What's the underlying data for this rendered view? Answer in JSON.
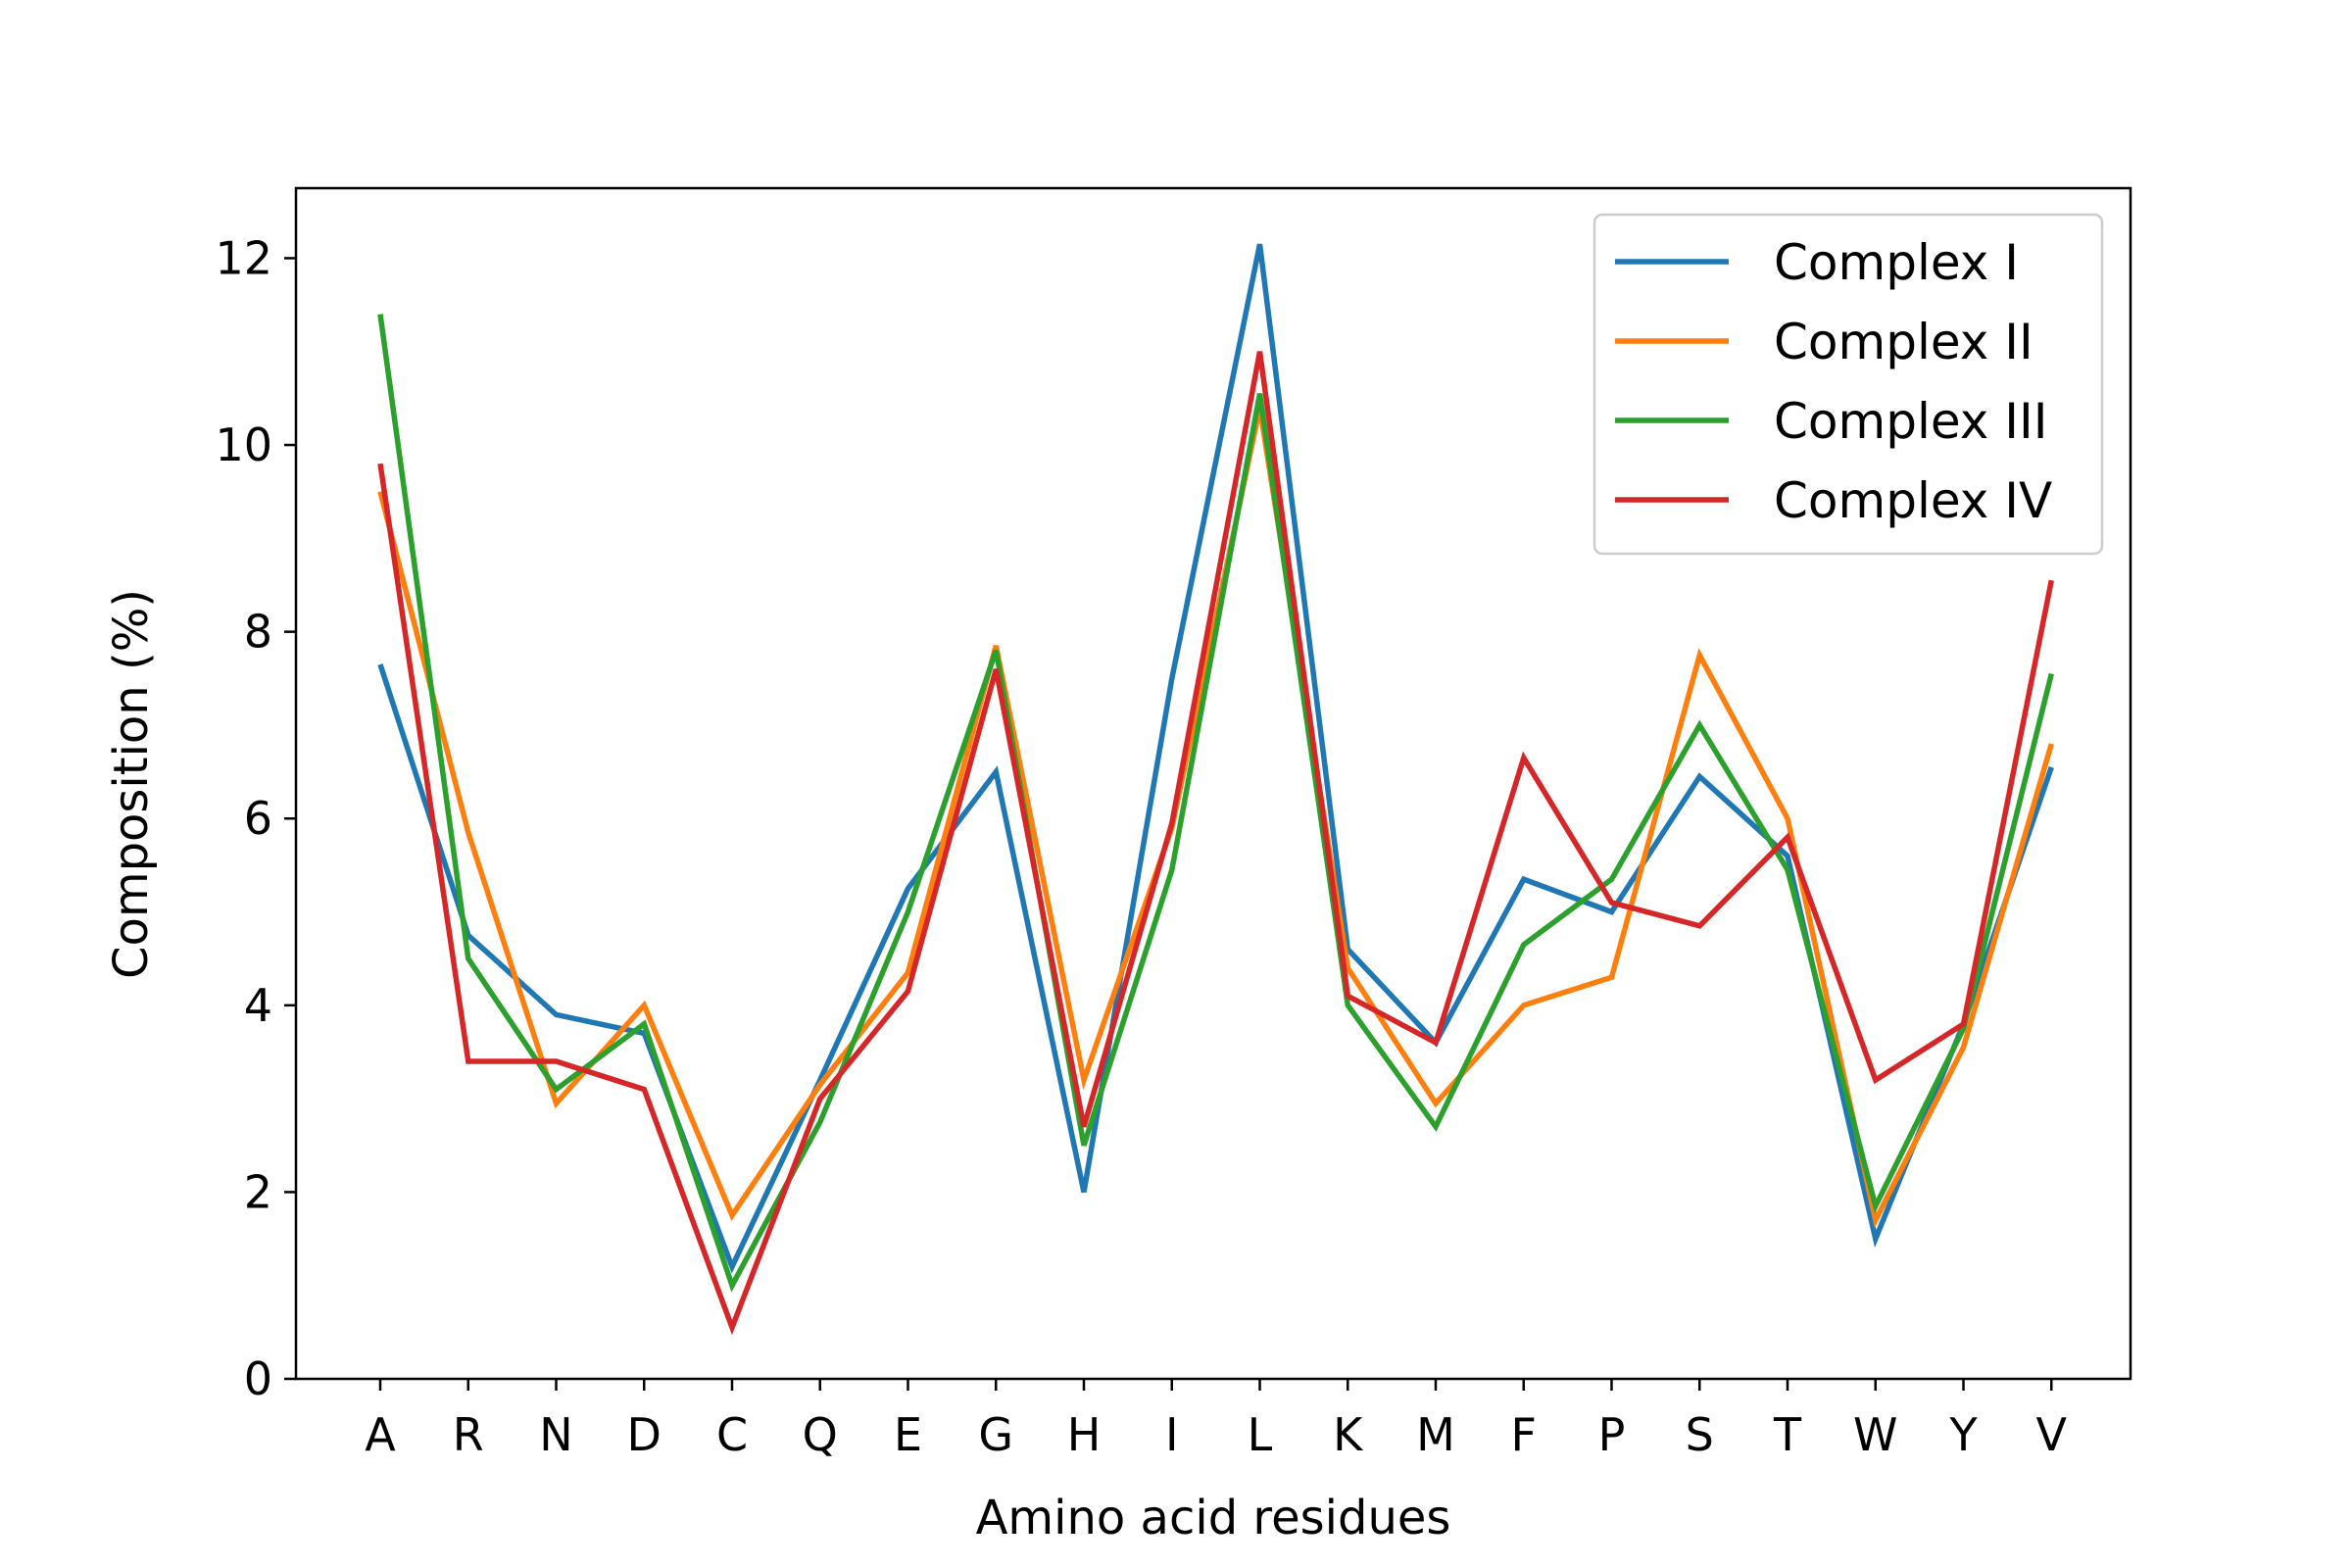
{
  "chart_data": {
    "type": "line",
    "categories": [
      "A",
      "R",
      "N",
      "D",
      "C",
      "Q",
      "E",
      "G",
      "H",
      "I",
      "L",
      "K",
      "M",
      "F",
      "P",
      "S",
      "T",
      "W",
      "Y",
      "V"
    ],
    "series": [
      {
        "name": "Complex I",
        "color": "#1f77b4",
        "values": [
          7.65,
          4.75,
          3.9,
          3.7,
          1.2,
          3.2,
          5.25,
          6.5,
          2.0,
          7.5,
          12.15,
          4.6,
          3.6,
          5.35,
          5.0,
          6.45,
          5.6,
          1.5,
          3.8,
          6.55
        ]
      },
      {
        "name": "Complex II",
        "color": "#ff7f0e",
        "values": [
          9.5,
          5.85,
          2.95,
          4.0,
          1.75,
          3.15,
          4.35,
          7.85,
          3.2,
          5.9,
          10.4,
          4.4,
          2.95,
          4.0,
          4.3,
          7.75,
          6.0,
          1.7,
          3.55,
          6.8
        ]
      },
      {
        "name": "Complex III",
        "color": "#2ca02c",
        "values": [
          11.4,
          4.5,
          3.1,
          3.8,
          1.0,
          2.75,
          5.0,
          7.8,
          2.5,
          5.45,
          10.55,
          4.0,
          2.7,
          4.65,
          5.35,
          7.0,
          5.45,
          1.85,
          3.75,
          7.55
        ]
      },
      {
        "name": "Complex IV",
        "color": "#d62728",
        "values": [
          9.8,
          3.4,
          3.4,
          3.1,
          0.55,
          3.0,
          4.15,
          7.6,
          2.7,
          5.95,
          11.0,
          4.1,
          3.6,
          6.65,
          5.1,
          4.85,
          5.8,
          3.2,
          3.8,
          8.55
        ]
      }
    ],
    "title": "",
    "xlabel": "Amino acid residues",
    "ylabel": "Composition (%)",
    "ylim": [
      0,
      12.75
    ],
    "yticks": [
      0,
      2,
      4,
      6,
      8,
      10,
      12
    ],
    "grid": false,
    "legend_position": "upper right"
  }
}
